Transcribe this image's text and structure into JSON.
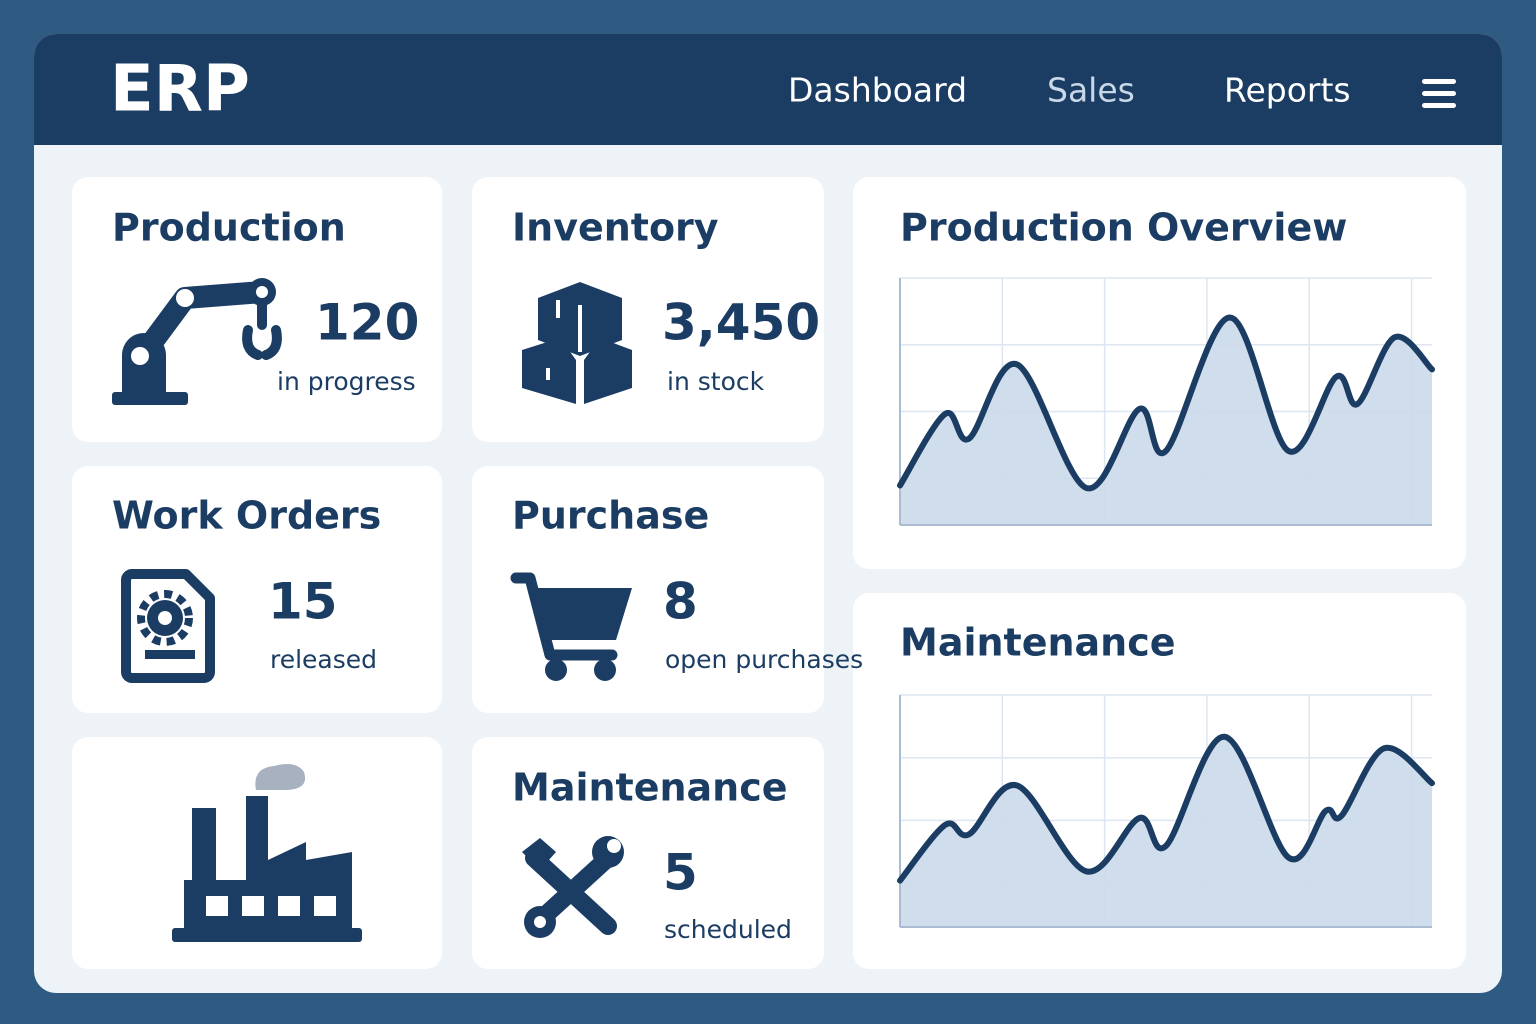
{
  "header": {
    "title": "ERP",
    "nav": [
      "Dashboard",
      "Sales",
      "Reports"
    ]
  },
  "cards": [
    {
      "title": "Production",
      "value": 120,
      "caption": "in progress"
    },
    {
      "title": "Inventory",
      "value": "3,450",
      "caption": "in stock"
    },
    {
      "title": "Work Orders",
      "value": 15,
      "caption": "released"
    },
    {
      "title": "Purchase",
      "value": 8,
      "caption": "open purchases"
    },
    {
      "title": "Maintenance",
      "value": 5,
      "caption": "scheduled"
    }
  ],
  "charts": [
    {
      "title": "Production Overview",
      "type": "area",
      "xlim": [
        0,
        100
      ],
      "ylim": [
        0,
        100
      ],
      "x": [
        0,
        8.5,
        13,
        22,
        35,
        45,
        50,
        62,
        73,
        82,
        86,
        93,
        100
      ],
      "values": [
        16,
        45,
        35,
        65,
        15,
        47,
        30,
        84,
        30,
        60,
        49,
        76,
        63
      ]
    },
    {
      "title": "Maintenance",
      "type": "area",
      "xlim": [
        0,
        100
      ],
      "ylim": [
        0,
        100
      ],
      "x": [
        0,
        8.5,
        13,
        22,
        35,
        45,
        50,
        61,
        73,
        80,
        83,
        91,
        100
      ],
      "values": [
        20,
        44,
        40,
        61,
        24,
        47,
        35,
        82,
        30,
        50,
        48,
        77,
        62
      ]
    }
  ]
}
